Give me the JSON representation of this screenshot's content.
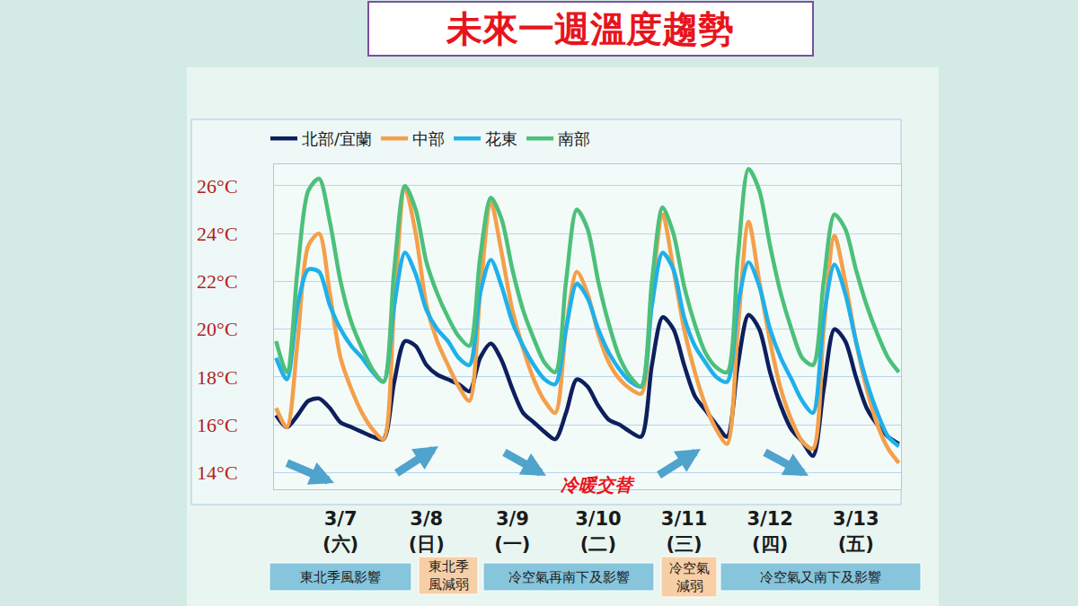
{
  "chart_data": {
    "type": "line",
    "title": "未來一週溫度趨勢",
    "categories": [
      null,
      null,
      null,
      null,
      null,
      null,
      "3/7\n(六)",
      null,
      null,
      null,
      null,
      null,
      null,
      null,
      "3/8\n(日)",
      null,
      null,
      null,
      null,
      null,
      null,
      null,
      "3/9\n(一)",
      null,
      null,
      null,
      null,
      null,
      null,
      null,
      "3/10\n(二)",
      null,
      null,
      null,
      null,
      null,
      null,
      null,
      "3/11\n(三)",
      null,
      null,
      null,
      null,
      null,
      null,
      null,
      "3/12\n(四)",
      null,
      null,
      null,
      null,
      null,
      null,
      null,
      "3/13\n(五)",
      null,
      null,
      null,
      null
    ],
    "series": [
      {
        "name": "北部/宜蘭",
        "color": "#0d1f5c",
        "values": [
          16.4,
          15.9,
          16.4,
          17.0,
          17.1,
          16.7,
          16.1,
          15.9,
          15.7,
          15.5,
          15.4,
          17.8,
          19.5,
          19.3,
          18.5,
          18.1,
          17.9,
          17.7,
          17.4,
          18.8,
          19.4,
          18.7,
          17.5,
          16.5,
          16.1,
          15.7,
          15.4,
          16.5,
          17.9,
          17.6,
          16.8,
          16.2,
          16.0,
          15.7,
          15.5,
          18.5,
          20.5,
          20.0,
          18.5,
          17.2,
          16.6,
          16.0,
          15.5,
          18.5,
          20.6,
          20.0,
          18.2,
          16.8,
          15.8,
          15.3,
          14.7,
          17.5,
          20.0,
          19.5,
          18.0,
          16.7,
          16.0,
          15.5,
          15.2
        ]
      },
      {
        "name": "中部",
        "color": "#f4a04a",
        "values": [
          16.7,
          15.9,
          19.5,
          23.5,
          24.0,
          21.5,
          18.8,
          17.5,
          16.5,
          15.8,
          15.4,
          21.0,
          25.9,
          24.0,
          21.0,
          19.5,
          18.5,
          17.6,
          17.0,
          21.5,
          25.3,
          23.2,
          20.8,
          19.2,
          17.9,
          17.0,
          16.5,
          20.0,
          22.4,
          21.5,
          19.8,
          18.6,
          17.9,
          17.5,
          17.3,
          21.5,
          24.8,
          22.5,
          20.0,
          18.2,
          16.8,
          15.8,
          15.2,
          20.0,
          24.5,
          22.0,
          19.5,
          17.5,
          16.2,
          15.3,
          15.0,
          20.0,
          23.9,
          22.0,
          19.5,
          17.5,
          16.0,
          15.0,
          14.4
        ]
      },
      {
        "name": "花東",
        "color": "#1fb0ea",
        "values": [
          18.8,
          17.9,
          21.0,
          22.5,
          22.4,
          21.0,
          20.0,
          19.3,
          18.8,
          18.2,
          17.8,
          21.0,
          23.2,
          22.3,
          20.8,
          20.0,
          19.5,
          18.8,
          18.5,
          21.5,
          22.9,
          21.8,
          20.3,
          19.3,
          18.5,
          17.9,
          17.7,
          20.0,
          21.9,
          21.3,
          20.0,
          19.0,
          18.3,
          17.8,
          17.6,
          21.0,
          23.2,
          22.5,
          20.5,
          19.3,
          18.6,
          18.0,
          17.8,
          21.0,
          22.8,
          21.8,
          20.0,
          18.8,
          17.9,
          17.0,
          16.5,
          20.5,
          22.7,
          21.5,
          19.5,
          17.8,
          16.5,
          15.5,
          15.1
        ]
      },
      {
        "name": "南部",
        "color": "#4cc07a",
        "values": [
          19.5,
          18.2,
          22.5,
          25.8,
          26.3,
          24.5,
          22.0,
          20.3,
          19.2,
          18.3,
          17.8,
          22.5,
          26.0,
          25.0,
          22.8,
          21.5,
          20.5,
          19.7,
          19.3,
          23.0,
          25.5,
          24.6,
          22.5,
          20.8,
          19.6,
          18.6,
          18.2,
          22.0,
          25.0,
          24.2,
          22.0,
          20.2,
          18.8,
          18.0,
          17.6,
          22.0,
          25.1,
          24.0,
          21.8,
          20.2,
          19.0,
          18.4,
          18.2,
          23.0,
          26.7,
          25.8,
          23.5,
          21.5,
          20.0,
          18.8,
          18.5,
          22.0,
          24.8,
          24.2,
          22.5,
          21.0,
          19.8,
          18.8,
          18.2
        ]
      }
    ],
    "ylim": [
      13.3,
      26.9
    ],
    "yticks": [
      {
        "value": 14,
        "label": "14°C"
      },
      {
        "value": 16,
        "label": "16°C"
      },
      {
        "value": 18,
        "label": "18°C"
      },
      {
        "value": 20,
        "label": "20°C"
      },
      {
        "value": 22,
        "label": "22°C"
      },
      {
        "value": 24,
        "label": "24°C"
      },
      {
        "value": 26,
        "label": "26°C"
      }
    ],
    "grid": true,
    "legend": "top",
    "annotations": [
      "冷暖交替"
    ],
    "phases": [
      "東北季風影響",
      "東北季風減弱",
      "冷空氣再南下及影響",
      "冷空氣減弱",
      "冷空氣又南下及影響"
    ]
  }
}
